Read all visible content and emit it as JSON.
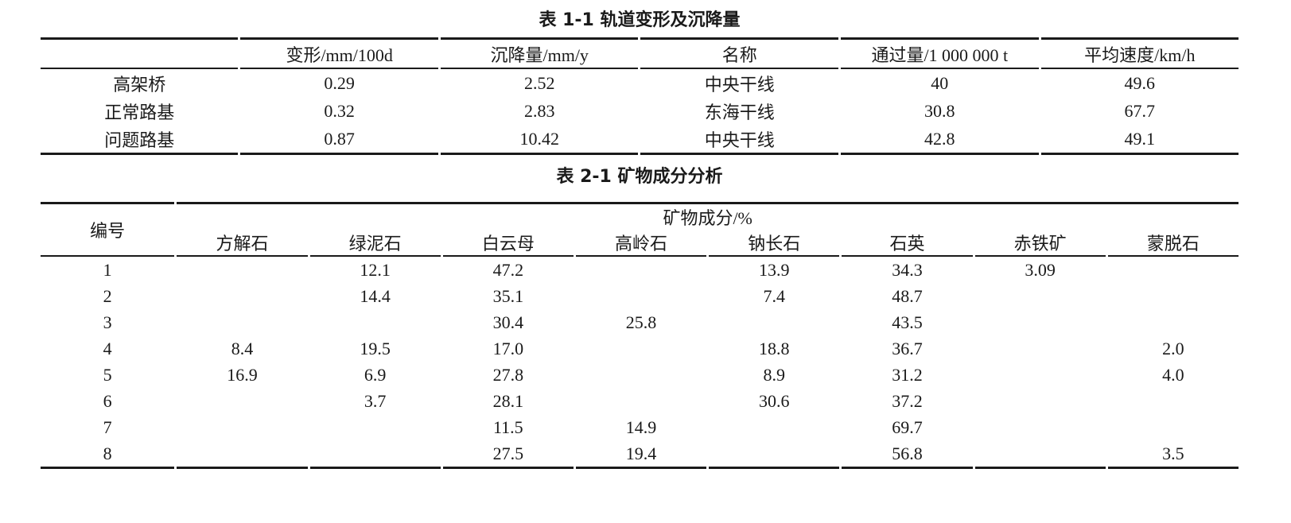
{
  "colors": {
    "background": "#ffffff",
    "text": "#1a1a1a",
    "rule": "#1a1a1a"
  },
  "table1": {
    "title": "表 1-1 轨道变形及沉降量",
    "columns": [
      "",
      "变形/mm/100d",
      "沉降量/mm/y",
      "名称",
      "通过量/1 000 000 t",
      "平均速度/km/h"
    ],
    "rows": [
      [
        "高架桥",
        "0.29",
        "2.52",
        "中央干线",
        "40",
        "49.6"
      ],
      [
        "正常路基",
        "0.32",
        "2.83",
        "东海干线",
        "30.8",
        "67.7"
      ],
      [
        "问题路基",
        "0.87",
        "10.42",
        "中央干线",
        "42.8",
        "49.1"
      ]
    ]
  },
  "table2": {
    "title": "表 2-1 矿物成分分析",
    "id_header": "编号",
    "group_header": "矿物成分/%",
    "mineral_columns": [
      "方解石",
      "绿泥石",
      "白云母",
      "高岭石",
      "钠长石",
      "石英",
      "赤铁矿",
      "蒙脱石"
    ],
    "rows": [
      {
        "id": "1",
        "values": [
          "",
          "12.1",
          "47.2",
          "",
          "13.9",
          "34.3",
          "3.09",
          ""
        ]
      },
      {
        "id": "2",
        "values": [
          "",
          "14.4",
          "35.1",
          "",
          "7.4",
          "48.7",
          "",
          ""
        ]
      },
      {
        "id": "3",
        "values": [
          "",
          "",
          "30.4",
          "25.8",
          "",
          "43.5",
          "",
          ""
        ]
      },
      {
        "id": "4",
        "values": [
          "8.4",
          "19.5",
          "17.0",
          "",
          "18.8",
          "36.7",
          "",
          "2.0"
        ]
      },
      {
        "id": "5",
        "values": [
          "16.9",
          "6.9",
          "27.8",
          "",
          "8.9",
          "31.2",
          "",
          "4.0"
        ]
      },
      {
        "id": "6",
        "values": [
          "",
          "3.7",
          "28.1",
          "",
          "30.6",
          "37.2",
          "",
          ""
        ]
      },
      {
        "id": "7",
        "values": [
          "",
          "",
          "11.5",
          "14.9",
          "",
          "69.7",
          "",
          ""
        ]
      },
      {
        "id": "8",
        "values": [
          "",
          "",
          "27.5",
          "19.4",
          "",
          "56.8",
          "",
          "3.5"
        ]
      }
    ]
  },
  "chart_data": [
    {
      "type": "table",
      "title": "表 1-1 轨道变形及沉降量",
      "columns": [
        "",
        "变形/mm/100d",
        "沉降量/mm/y",
        "名称",
        "通过量/1 000 000 t",
        "平均速度/km/h"
      ],
      "rows": [
        [
          "高架桥",
          0.29,
          2.52,
          "中央干线",
          40,
          49.6
        ],
        [
          "正常路基",
          0.32,
          2.83,
          "东海干线",
          30.8,
          67.7
        ],
        [
          "问题路基",
          0.87,
          10.42,
          "中央干线",
          42.8,
          49.1
        ]
      ]
    },
    {
      "type": "table",
      "title": "表 2-1 矿物成分分析",
      "group_header": "矿物成分/%",
      "columns": [
        "编号",
        "方解石",
        "绿泥石",
        "白云母",
        "高岭石",
        "钠长石",
        "石英",
        "赤铁矿",
        "蒙脱石"
      ],
      "rows": [
        [
          1,
          null,
          12.1,
          47.2,
          null,
          13.9,
          34.3,
          3.09,
          null
        ],
        [
          2,
          null,
          14.4,
          35.1,
          null,
          7.4,
          48.7,
          null,
          null
        ],
        [
          3,
          null,
          null,
          30.4,
          25.8,
          null,
          43.5,
          null,
          null
        ],
        [
          4,
          8.4,
          19.5,
          17.0,
          null,
          18.8,
          36.7,
          null,
          2.0
        ],
        [
          5,
          16.9,
          6.9,
          27.8,
          null,
          8.9,
          31.2,
          null,
          4.0
        ],
        [
          6,
          null,
          3.7,
          28.1,
          null,
          30.6,
          37.2,
          null,
          null
        ],
        [
          7,
          null,
          null,
          11.5,
          14.9,
          null,
          69.7,
          null,
          null
        ],
        [
          8,
          null,
          null,
          27.5,
          19.4,
          null,
          56.8,
          null,
          3.5
        ]
      ]
    }
  ]
}
